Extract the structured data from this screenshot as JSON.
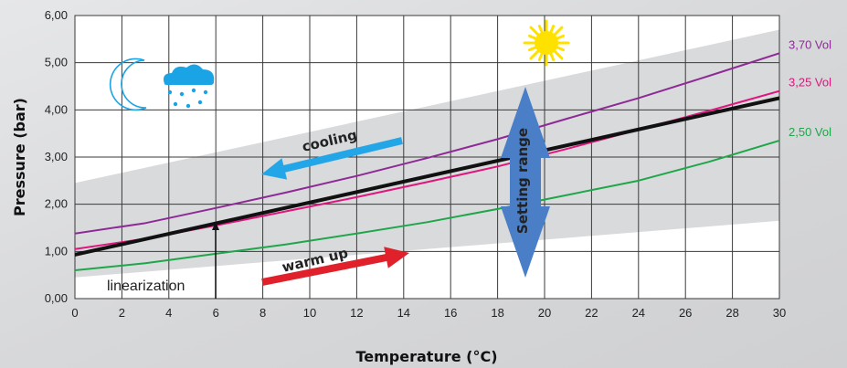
{
  "chart_data": {
    "type": "line",
    "xlabel": "Temperature (°C)",
    "ylabel": "Pressure (bar)",
    "xlim": [
      0,
      30
    ],
    "ylim": [
      0,
      6
    ],
    "x_ticks": [
      "0",
      "2",
      "4",
      "6",
      "8",
      "10",
      "12",
      "14",
      "16",
      "18",
      "20",
      "22",
      "24",
      "26",
      "28",
      "30"
    ],
    "y_ticks": [
      "0,00",
      "1,00",
      "2,00",
      "3,00",
      "4,00",
      "5,00",
      "6,00"
    ],
    "grid": true,
    "series": [
      {
        "name": "3,70 Vol",
        "color": "#8e2a96",
        "x": [
          0,
          3,
          6,
          9,
          12,
          15,
          18,
          21,
          24,
          27,
          30
        ],
        "y": [
          1.38,
          1.6,
          1.92,
          2.25,
          2.6,
          2.98,
          3.38,
          3.82,
          4.25,
          4.72,
          5.2
        ]
      },
      {
        "name": "3,25 Vol",
        "color": "#e0157d",
        "x": [
          0,
          3,
          6,
          9,
          12,
          15,
          18,
          21,
          24,
          27,
          30
        ],
        "y": [
          1.05,
          1.27,
          1.55,
          1.85,
          2.15,
          2.47,
          2.8,
          3.18,
          3.58,
          3.98,
          4.4
        ]
      },
      {
        "name": "2,50 Vol",
        "color": "#1fa64a",
        "x": [
          0,
          3,
          6,
          9,
          12,
          15,
          18,
          21,
          24,
          27,
          30
        ],
        "y": [
          0.6,
          0.75,
          0.95,
          1.15,
          1.38,
          1.62,
          1.9,
          2.2,
          2.5,
          2.9,
          3.35
        ]
      },
      {
        "name": "",
        "color": "#111111",
        "x": [
          0,
          30
        ],
        "y": [
          0.93,
          4.25
        ]
      }
    ],
    "setting_range_band": {
      "x": [
        0,
        30
      ],
      "upper": [
        2.45,
        5.7
      ],
      "lower": [
        0.45,
        1.65
      ]
    },
    "annotations": {
      "cooling": "cooling",
      "warm_up": "warm up",
      "setting_range": "Setting range",
      "linearization": "linearization"
    },
    "colors": {
      "band": "#d9dadc",
      "cooling_arrow": "#23a6e8",
      "warm_arrow": "#e0202a",
      "setting_arrow": "#4a7fc8",
      "sun": "#ffe100",
      "weather_icon": "#1aa4e6"
    }
  }
}
